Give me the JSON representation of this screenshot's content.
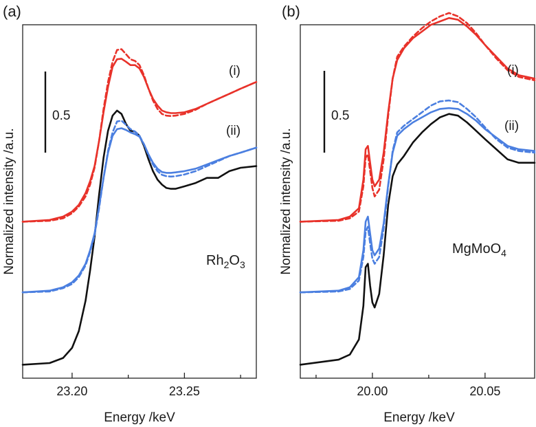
{
  "chart_data": [
    {
      "type": "line",
      "panel_label": "(a)",
      "xlabel": "Energy /keV",
      "ylabel": "Normalized intensity /a.u.",
      "xlim": [
        23.178,
        23.282
      ],
      "ylim": [
        -0.08,
        2.02
      ],
      "xticks": [
        23.2,
        23.25
      ],
      "xtick_labels": [
        "23.20",
        "23.25"
      ],
      "yticks_shown": false,
      "scale_bar": {
        "label": "0.5",
        "value": 0.5
      },
      "curve_labels": [
        {
          "text": "(i)"
        },
        {
          "text": "(ii)"
        }
      ],
      "reference_label": {
        "main": "Rh",
        "sub1": "2",
        "mid": "O",
        "sub2": "3"
      },
      "series": [
        {
          "name": "(i) solid",
          "color": "#e8322a",
          "style": "solid",
          "x": [
            23.178,
            23.19,
            23.196,
            23.2,
            23.203,
            23.206,
            23.208,
            23.21,
            23.212,
            23.214,
            23.216,
            23.218,
            23.22,
            23.222,
            23.224,
            23.226,
            23.228,
            23.23,
            23.232,
            23.234,
            23.236,
            23.238,
            23.24,
            23.242,
            23.244,
            23.246,
            23.25,
            23.255,
            23.26,
            23.265,
            23.27,
            23.275,
            23.282
          ],
          "y": [
            0.85,
            0.86,
            0.88,
            0.91,
            0.95,
            1.02,
            1.09,
            1.18,
            1.33,
            1.5,
            1.65,
            1.77,
            1.815,
            1.818,
            1.8,
            1.78,
            1.78,
            1.76,
            1.71,
            1.64,
            1.58,
            1.54,
            1.51,
            1.5,
            1.495,
            1.495,
            1.5,
            1.52,
            1.55,
            1.58,
            1.61,
            1.64,
            1.68
          ]
        },
        {
          "name": "(i) dashed",
          "color": "#e8322a",
          "style": "dashed",
          "x": [
            23.178,
            23.19,
            23.196,
            23.2,
            23.203,
            23.206,
            23.208,
            23.21,
            23.212,
            23.214,
            23.216,
            23.218,
            23.22,
            23.222,
            23.224,
            23.226,
            23.228,
            23.23,
            23.232,
            23.234,
            23.236,
            23.238,
            23.24,
            23.242,
            23.244,
            23.246,
            23.25,
            23.255,
            23.26,
            23.265,
            23.27,
            23.275,
            23.282
          ],
          "y": [
            0.85,
            0.855,
            0.87,
            0.9,
            0.94,
            1.0,
            1.07,
            1.17,
            1.33,
            1.52,
            1.68,
            1.8,
            1.87,
            1.875,
            1.845,
            1.815,
            1.805,
            1.78,
            1.72,
            1.64,
            1.57,
            1.52,
            1.49,
            1.48,
            1.478,
            1.48,
            1.49,
            1.515,
            1.55,
            1.58,
            1.61,
            1.64,
            1.68
          ]
        },
        {
          "name": "(ii) solid",
          "color": "#4b7fe0",
          "style": "solid",
          "x": [
            23.178,
            23.19,
            23.196,
            23.2,
            23.203,
            23.206,
            23.208,
            23.21,
            23.212,
            23.214,
            23.216,
            23.218,
            23.22,
            23.222,
            23.224,
            23.226,
            23.228,
            23.23,
            23.232,
            23.234,
            23.236,
            23.238,
            23.24,
            23.242,
            23.244,
            23.246,
            23.25,
            23.255,
            23.26,
            23.265,
            23.27,
            23.275,
            23.282
          ],
          "y": [
            0.43,
            0.44,
            0.46,
            0.49,
            0.53,
            0.6,
            0.68,
            0.78,
            0.94,
            1.11,
            1.26,
            1.36,
            1.4,
            1.405,
            1.395,
            1.38,
            1.37,
            1.355,
            1.31,
            1.25,
            1.2,
            1.165,
            1.145,
            1.14,
            1.14,
            1.143,
            1.15,
            1.165,
            1.19,
            1.215,
            1.24,
            1.26,
            1.29
          ]
        },
        {
          "name": "(ii) dashed",
          "color": "#4b7fe0",
          "style": "dashed",
          "x": [
            23.178,
            23.19,
            23.196,
            23.2,
            23.203,
            23.206,
            23.208,
            23.21,
            23.212,
            23.214,
            23.216,
            23.218,
            23.22,
            23.222,
            23.224,
            23.226,
            23.228,
            23.23,
            23.232,
            23.234,
            23.236,
            23.238,
            23.24,
            23.242,
            23.244,
            23.246,
            23.25,
            23.255,
            23.26,
            23.265,
            23.27,
            23.275,
            23.282
          ],
          "y": [
            0.43,
            0.435,
            0.455,
            0.48,
            0.52,
            0.59,
            0.67,
            0.77,
            0.93,
            1.11,
            1.27,
            1.38,
            1.445,
            1.45,
            1.425,
            1.4,
            1.385,
            1.36,
            1.31,
            1.245,
            1.19,
            1.15,
            1.128,
            1.12,
            1.118,
            1.12,
            1.13,
            1.15,
            1.18,
            1.21,
            1.24,
            1.26,
            1.29
          ]
        },
        {
          "name": "Rh2O3",
          "color": "#111111",
          "style": "solid",
          "x": [
            23.178,
            23.19,
            23.196,
            23.2,
            23.203,
            23.206,
            23.208,
            23.21,
            23.212,
            23.214,
            23.216,
            23.218,
            23.22,
            23.222,
            23.224,
            23.226,
            23.228,
            23.23,
            23.232,
            23.234,
            23.236,
            23.238,
            23.24,
            23.242,
            23.244,
            23.246,
            23.25,
            23.255,
            23.26,
            23.265,
            23.27,
            23.275,
            23.282
          ],
          "y": [
            0.0,
            0.01,
            0.04,
            0.1,
            0.2,
            0.38,
            0.56,
            0.76,
            1.01,
            1.23,
            1.39,
            1.48,
            1.51,
            1.49,
            1.43,
            1.39,
            1.385,
            1.36,
            1.3,
            1.22,
            1.15,
            1.1,
            1.07,
            1.05,
            1.045,
            1.045,
            1.06,
            1.08,
            1.11,
            1.11,
            1.15,
            1.17,
            1.18
          ]
        }
      ]
    },
    {
      "type": "line",
      "panel_label": "(b)",
      "xlabel": "Energy /keV",
      "ylabel": "Normalized intensity /a.u.",
      "xlim": [
        19.968,
        20.072
      ],
      "ylim": [
        -0.08,
        2.02
      ],
      "xticks": [
        20.0,
        20.05
      ],
      "xtick_labels": [
        "20.00",
        "20.05"
      ],
      "yticks_shown": false,
      "scale_bar": {
        "label": "0.5",
        "value": 0.5
      },
      "curve_labels": [
        {
          "text": "(i)"
        },
        {
          "text": "(ii)"
        }
      ],
      "reference_label": {
        "main": "MgMoO",
        "sub1": "4"
      },
      "series": [
        {
          "name": "(i) solid",
          "color": "#e8322a",
          "style": "solid",
          "x": [
            19.968,
            19.985,
            19.99,
            19.994,
            19.996,
            19.997,
            19.998,
            19.999,
            20.0,
            20.001,
            20.003,
            20.005,
            20.007,
            20.009,
            20.011,
            20.014,
            20.018,
            20.022,
            20.026,
            20.03,
            20.034,
            20.038,
            20.042,
            20.046,
            20.05,
            20.055,
            20.06,
            20.065,
            20.072
          ],
          "y": [
            0.85,
            0.86,
            0.88,
            0.93,
            1.1,
            1.28,
            1.3,
            1.2,
            1.1,
            1.06,
            1.1,
            1.26,
            1.5,
            1.7,
            1.81,
            1.88,
            1.94,
            1.98,
            2.02,
            2.04,
            2.06,
            2.05,
            2.01,
            1.96,
            1.9,
            1.83,
            1.76,
            1.72,
            1.7
          ]
        },
        {
          "name": "(i) dashed",
          "color": "#e8322a",
          "style": "dashed",
          "x": [
            19.968,
            19.985,
            19.99,
            19.994,
            19.996,
            19.997,
            19.998,
            19.999,
            20.0,
            20.001,
            20.003,
            20.005,
            20.007,
            20.009,
            20.011,
            20.014,
            20.018,
            20.022,
            20.026,
            20.03,
            20.034,
            20.038,
            20.042,
            20.046,
            20.05,
            20.055,
            20.06,
            20.065,
            20.072
          ],
          "y": [
            0.85,
            0.855,
            0.87,
            0.91,
            1.06,
            1.23,
            1.25,
            1.15,
            1.05,
            1.0,
            1.04,
            1.22,
            1.48,
            1.7,
            1.83,
            1.89,
            1.95,
            2.0,
            2.04,
            2.07,
            2.09,
            2.07,
            2.03,
            1.97,
            1.9,
            1.82,
            1.75,
            1.71,
            1.69
          ]
        },
        {
          "name": "(ii) solid",
          "color": "#4b7fe0",
          "style": "solid",
          "x": [
            19.968,
            19.985,
            19.99,
            19.994,
            19.996,
            19.997,
            19.998,
            19.999,
            20.0,
            20.001,
            20.003,
            20.005,
            20.007,
            20.009,
            20.011,
            20.014,
            20.018,
            20.022,
            20.026,
            20.03,
            20.034,
            20.038,
            20.042,
            20.046,
            20.05,
            20.055,
            20.06,
            20.065,
            20.072
          ],
          "y": [
            0.43,
            0.44,
            0.46,
            0.52,
            0.68,
            0.85,
            0.88,
            0.78,
            0.68,
            0.65,
            0.69,
            0.84,
            1.07,
            1.26,
            1.36,
            1.4,
            1.44,
            1.47,
            1.5,
            1.52,
            1.525,
            1.52,
            1.49,
            1.45,
            1.4,
            1.35,
            1.3,
            1.28,
            1.27
          ]
        },
        {
          "name": "(ii) dashed",
          "color": "#4b7fe0",
          "style": "dashed",
          "x": [
            19.968,
            19.985,
            19.99,
            19.994,
            19.996,
            19.997,
            19.998,
            19.999,
            20.0,
            20.001,
            20.003,
            20.005,
            20.007,
            20.009,
            20.011,
            20.014,
            20.018,
            20.022,
            20.026,
            20.03,
            20.034,
            20.038,
            20.042,
            20.046,
            20.05,
            20.055,
            20.06,
            20.065,
            20.072
          ],
          "y": [
            0.43,
            0.435,
            0.45,
            0.5,
            0.64,
            0.79,
            0.82,
            0.72,
            0.63,
            0.6,
            0.64,
            0.81,
            1.06,
            1.27,
            1.38,
            1.42,
            1.46,
            1.5,
            1.54,
            1.565,
            1.57,
            1.56,
            1.52,
            1.47,
            1.41,
            1.34,
            1.29,
            1.27,
            1.26
          ]
        },
        {
          "name": "MgMoO4",
          "color": "#111111",
          "style": "solid",
          "x": [
            19.968,
            19.985,
            19.99,
            19.994,
            19.996,
            19.997,
            19.998,
            19.999,
            20.0,
            20.001,
            20.003,
            20.005,
            20.007,
            20.009,
            20.011,
            20.014,
            20.018,
            20.022,
            20.026,
            20.03,
            20.034,
            20.038,
            20.042,
            20.046,
            20.05,
            20.055,
            20.06,
            20.065,
            20.072
          ],
          "y": [
            0.0,
            0.03,
            0.06,
            0.15,
            0.35,
            0.58,
            0.6,
            0.47,
            0.37,
            0.34,
            0.42,
            0.65,
            0.95,
            1.12,
            1.19,
            1.24,
            1.32,
            1.38,
            1.43,
            1.47,
            1.49,
            1.48,
            1.44,
            1.39,
            1.34,
            1.28,
            1.22,
            1.2,
            1.2
          ]
        }
      ]
    }
  ]
}
